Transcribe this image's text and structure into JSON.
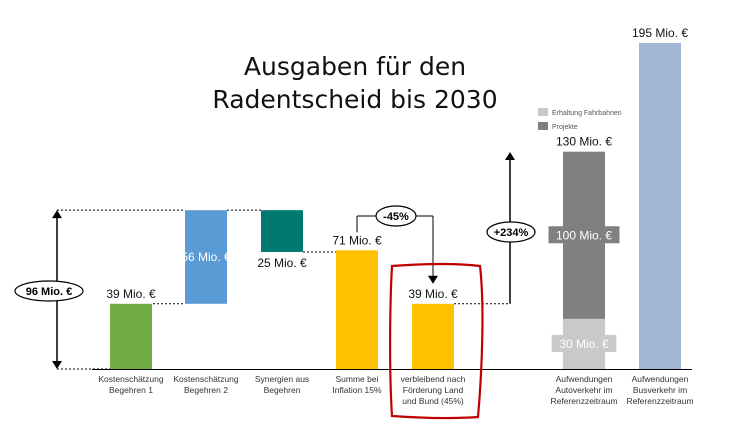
{
  "chart_data": {
    "type": "bar",
    "title_lines": [
      "Ausgaben für den",
      "Radentscheid bis 2030"
    ],
    "unit": "Mio. €",
    "categories": [
      [
        "Kostenschätzung",
        "Begehren 1"
      ],
      [
        "Kostenschätzung",
        "Begehren 2"
      ],
      [
        "Synergien aus",
        "Begehren"
      ],
      [
        "Summe bei",
        "Inflation 15%"
      ],
      [
        "verbleibend nach",
        "Förderung Land",
        "und Bund (45%)"
      ],
      [
        "Aufwendungen",
        "Autoverkehr im",
        "Referenzzeitraum"
      ],
      [
        "Aufwendungen",
        "Busverkehr im",
        "Referenzzeitraum"
      ]
    ],
    "bars": [
      {
        "kind": "total",
        "start": 0,
        "end": 39,
        "label": "39 Mio. €",
        "color": "#70ad47"
      },
      {
        "kind": "increase",
        "start": 39,
        "end": 95,
        "label": "56 Mio. €",
        "color": "#5b9bd5"
      },
      {
        "kind": "decrease",
        "start": 95,
        "end": 70,
        "label": "25 Mio. €",
        "color": "#007a70"
      },
      {
        "kind": "total",
        "start": 0,
        "end": 71,
        "label": "71 Mio. €",
        "color": "#ffc000"
      },
      {
        "kind": "total",
        "start": 0,
        "end": 39,
        "label": "39 Mio. €",
        "color": "#ffc000"
      },
      {
        "kind": "stacked",
        "segments": [
          {
            "name": "Erhaltung Fahrbahnen",
            "value": 30,
            "label": "30 Mio. €",
            "color": "#c9c9c9"
          },
          {
            "name": "Projekte",
            "value": 100,
            "label": "100 Mio. €",
            "color": "#808080"
          }
        ],
        "total_label": "130 Mio. €"
      },
      {
        "kind": "total",
        "start": 0,
        "end": 195,
        "label": "195 Mio. €",
        "color": "#a2b6d4"
      }
    ],
    "legend": [
      {
        "name": "Erhaltung Fahrbahnen",
        "color": "#c9c9c9"
      },
      {
        "name": "Projekte",
        "color": "#808080"
      }
    ],
    "legend_position": "above bar 6",
    "annotations": {
      "span": "96 Mio. €",
      "reduction": "-45%",
      "increase": "+234%"
    },
    "highlight": {
      "bar_index": 4,
      "color": "#c00000"
    },
    "ylim": [
      0,
      195
    ]
  }
}
